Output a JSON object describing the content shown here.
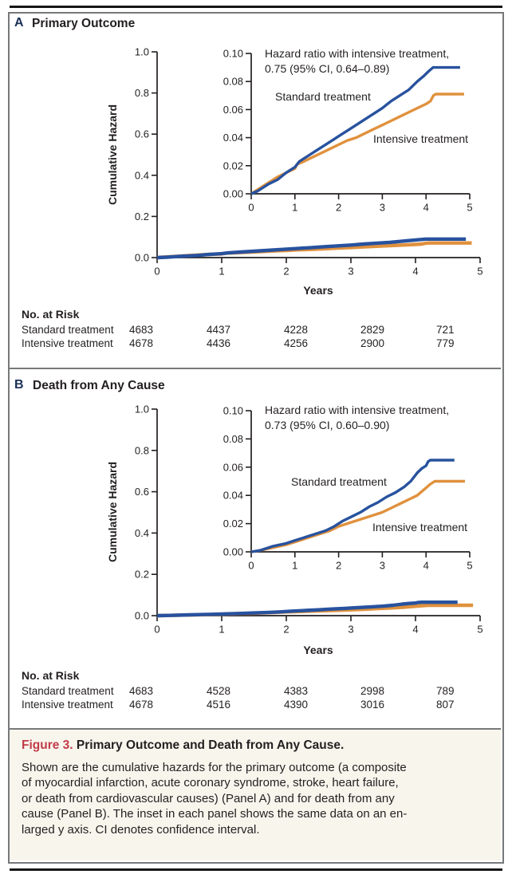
{
  "figure": {
    "caption_label": "Figure 3.",
    "caption_title": "Primary Outcome and Death from Any Cause.",
    "caption_lines": [
      "Shown are the cumulative hazards for the primary outcome (a composite",
      "of myocardial infarction, acute coronary syndrome, stroke, heart failure,",
      "or death from cardiovascular causes) (Panel A) and for death from any",
      "cause (Panel B). The inset in each panel shows the same data on an en-",
      "larged y axis. CI denotes confidence interval."
    ],
    "colors": {
      "standard_treatment": "#28529e",
      "intensive_treatment": "#e0913d",
      "caption_label_red": "#c23b49",
      "caption_background": "#f8f5ed",
      "frame_gray": "#77787a",
      "text": "#231f20"
    }
  },
  "chart_data": [
    {
      "type": "line",
      "panel": "A",
      "title": "Primary Outcome",
      "xlabel": "Years",
      "ylabel": "Cumulative Hazard",
      "xlim": [
        0,
        5
      ],
      "ylim": [
        0,
        1.0
      ],
      "xticks": [
        "0",
        "1",
        "2",
        "3",
        "4",
        "5"
      ],
      "yticks": [
        "0.0",
        "0.2",
        "0.4",
        "0.6",
        "0.8",
        "1.0"
      ],
      "grid": false,
      "inset": {
        "ylim": [
          0,
          0.1
        ],
        "xticks": [
          "0",
          "1",
          "2",
          "3",
          "4",
          "5"
        ],
        "yticks": [
          "0.00",
          "0.02",
          "0.04",
          "0.06",
          "0.08",
          "0.10"
        ],
        "annotation_line1": "Hazard ratio with intensive treatment,",
        "annotation_line2": "0.75 (95% CI, 0.64–0.89)"
      },
      "series": [
        {
          "name": "Standard treatment",
          "color": "#28529e",
          "points": [
            [
              0,
              0
            ],
            [
              0.15,
              0.002
            ],
            [
              0.4,
              0.007
            ],
            [
              0.6,
              0.01
            ],
            [
              0.8,
              0.015
            ],
            [
              1.0,
              0.019
            ],
            [
              1.1,
              0.023
            ],
            [
              1.3,
              0.027
            ],
            [
              1.5,
              0.031
            ],
            [
              1.7,
              0.035
            ],
            [
              1.9,
              0.039
            ],
            [
              2.0,
              0.041
            ],
            [
              2.2,
              0.045
            ],
            [
              2.4,
              0.049
            ],
            [
              2.6,
              0.053
            ],
            [
              2.8,
              0.057
            ],
            [
              3.0,
              0.061
            ],
            [
              3.2,
              0.066
            ],
            [
              3.4,
              0.07
            ],
            [
              3.6,
              0.074
            ],
            [
              3.8,
              0.08
            ],
            [
              3.95,
              0.084
            ],
            [
              4.05,
              0.087
            ],
            [
              4.16,
              0.09
            ],
            [
              4.78,
              0.09
            ]
          ]
        },
        {
          "name": "Intensive treatment",
          "color": "#e0913d",
          "points": [
            [
              0,
              0
            ],
            [
              0.15,
              0.003
            ],
            [
              0.4,
              0.008
            ],
            [
              0.6,
              0.012
            ],
            [
              0.8,
              0.015
            ],
            [
              1.0,
              0.018
            ],
            [
              1.05,
              0.021
            ],
            [
              1.2,
              0.023
            ],
            [
              1.4,
              0.026
            ],
            [
              1.6,
              0.029
            ],
            [
              1.8,
              0.032
            ],
            [
              2.0,
              0.035
            ],
            [
              2.2,
              0.038
            ],
            [
              2.4,
              0.04
            ],
            [
              2.6,
              0.043
            ],
            [
              2.8,
              0.046
            ],
            [
              3.0,
              0.049
            ],
            [
              3.2,
              0.052
            ],
            [
              3.4,
              0.055
            ],
            [
              3.6,
              0.058
            ],
            [
              3.8,
              0.061
            ],
            [
              4.0,
              0.064
            ],
            [
              4.1,
              0.066
            ],
            [
              4.17,
              0.07
            ],
            [
              4.22,
              0.071
            ],
            [
              4.87,
              0.071
            ]
          ]
        }
      ],
      "no_at_risk": {
        "header": "No. at Risk",
        "rows": [
          {
            "label": "Standard treatment",
            "values": [
              "4683",
              "4437",
              "4228",
              "2829",
              "721"
            ]
          },
          {
            "label": "Intensive treatment",
            "values": [
              "4678",
              "4436",
              "4256",
              "2900",
              "779"
            ]
          }
        ]
      }
    },
    {
      "type": "line",
      "panel": "B",
      "title": "Death from Any Cause",
      "xlabel": "Years",
      "ylabel": "Cumulative Hazard",
      "xlim": [
        0,
        5
      ],
      "ylim": [
        0,
        1.0
      ],
      "xticks": [
        "0",
        "1",
        "2",
        "3",
        "4",
        "5"
      ],
      "yticks": [
        "0.0",
        "0.2",
        "0.4",
        "0.6",
        "0.8",
        "1.0"
      ],
      "grid": false,
      "inset": {
        "ylim": [
          0,
          0.1
        ],
        "xticks": [
          "0",
          "1",
          "2",
          "3",
          "4",
          "5"
        ],
        "yticks": [
          "0.00",
          "0.02",
          "0.04",
          "0.06",
          "0.08",
          "0.10"
        ],
        "annotation_line1": "Hazard ratio with intensive treatment,",
        "annotation_line2": "0.73 (95% CI, 0.60–0.90)"
      },
      "series": [
        {
          "name": "Standard treatment",
          "color": "#28529e",
          "points": [
            [
              0,
              0
            ],
            [
              0.2,
              0.001
            ],
            [
              0.5,
              0.004
            ],
            [
              0.8,
              0.006
            ],
            [
              1.0,
              0.008
            ],
            [
              1.3,
              0.011
            ],
            [
              1.5,
              0.013
            ],
            [
              1.7,
              0.015
            ],
            [
              1.9,
              0.018
            ],
            [
              2.1,
              0.022
            ],
            [
              2.3,
              0.025
            ],
            [
              2.5,
              0.028
            ],
            [
              2.7,
              0.032
            ],
            [
              2.9,
              0.035
            ],
            [
              3.1,
              0.039
            ],
            [
              3.3,
              0.042
            ],
            [
              3.5,
              0.046
            ],
            [
              3.65,
              0.05
            ],
            [
              3.8,
              0.056
            ],
            [
              3.9,
              0.059
            ],
            [
              4.0,
              0.061
            ],
            [
              4.05,
              0.064
            ],
            [
              4.1,
              0.065
            ],
            [
              4.65,
              0.065
            ]
          ]
        },
        {
          "name": "Intensive treatment",
          "color": "#e0913d",
          "points": [
            [
              0,
              0
            ],
            [
              0.2,
              0.001
            ],
            [
              0.5,
              0.003
            ],
            [
              0.8,
              0.005
            ],
            [
              1.0,
              0.007
            ],
            [
              1.3,
              0.01
            ],
            [
              1.5,
              0.012
            ],
            [
              1.8,
              0.015
            ],
            [
              2.0,
              0.018
            ],
            [
              2.3,
              0.021
            ],
            [
              2.5,
              0.023
            ],
            [
              2.8,
              0.026
            ],
            [
              3.0,
              0.028
            ],
            [
              3.2,
              0.031
            ],
            [
              3.4,
              0.034
            ],
            [
              3.6,
              0.037
            ],
            [
              3.8,
              0.04
            ],
            [
              3.95,
              0.044
            ],
            [
              4.1,
              0.048
            ],
            [
              4.2,
              0.05
            ],
            [
              4.89,
              0.05
            ]
          ]
        }
      ],
      "no_at_risk": {
        "header": "No. at Risk",
        "rows": [
          {
            "label": "Standard treatment",
            "values": [
              "4683",
              "4528",
              "4383",
              "2998",
              "789"
            ]
          },
          {
            "label": "Intensive treatment",
            "values": [
              "4678",
              "4516",
              "4390",
              "3016",
              "807"
            ]
          }
        ]
      }
    }
  ]
}
